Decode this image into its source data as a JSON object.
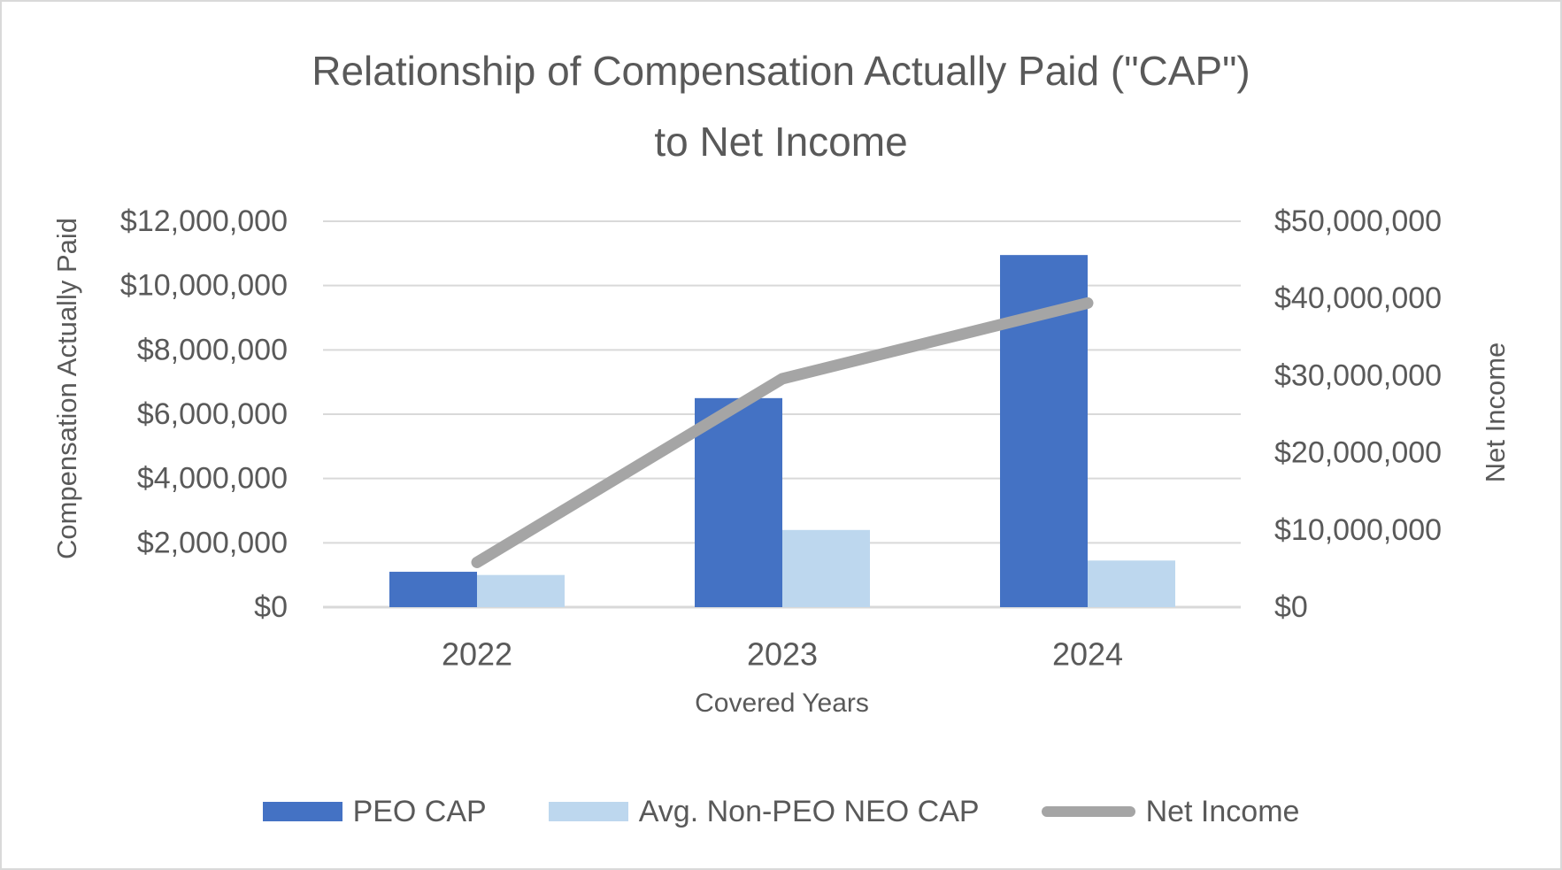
{
  "title": {
    "line1": "Relationship of Compensation Actually Paid (\"CAP\")",
    "line2": "to Net Income"
  },
  "chart_data": {
    "type": "combo-bar-line",
    "title": "Relationship of Compensation Actually Paid (\"CAP\") to Net Income",
    "categories": [
      "2022",
      "2023",
      "2024"
    ],
    "series": [
      {
        "name": "PEO CAP",
        "type": "bar",
        "axis": "left",
        "color": "#4472C4",
        "values": [
          1100000,
          6500000,
          10950000
        ]
      },
      {
        "name": "Avg. Non-PEO NEO CAP",
        "type": "bar",
        "axis": "left",
        "color": "#BDD7EE",
        "values": [
          1000000,
          2400000,
          1450000
        ]
      },
      {
        "name": "Net Income",
        "type": "line",
        "axis": "right",
        "color": "#A5A5A5",
        "values": [
          5800000,
          29600000,
          39400000
        ]
      }
    ],
    "x_axis": {
      "title": "Covered Years"
    },
    "left_axis": {
      "title": "Compensation Actually Paid",
      "min": 0,
      "max": 12000000,
      "step": 2000000,
      "tick_labels": [
        "$0",
        "$2,000,000",
        "$4,000,000",
        "$6,000,000",
        "$8,000,000",
        "$10,000,000",
        "$12,000,000"
      ]
    },
    "right_axis": {
      "title": "Net Income",
      "min": 0,
      "max": 50000000,
      "step": 10000000,
      "tick_labels": [
        "$0",
        "$10,000,000",
        "$20,000,000",
        "$30,000,000",
        "$40,000,000",
        "$50,000,000"
      ]
    },
    "gridlines": true,
    "legend_position": "bottom"
  },
  "colors": {
    "text": "#595959",
    "gridline": "#D9D9D9",
    "border": "#D9D9D9",
    "background": "#FFFFFF"
  }
}
